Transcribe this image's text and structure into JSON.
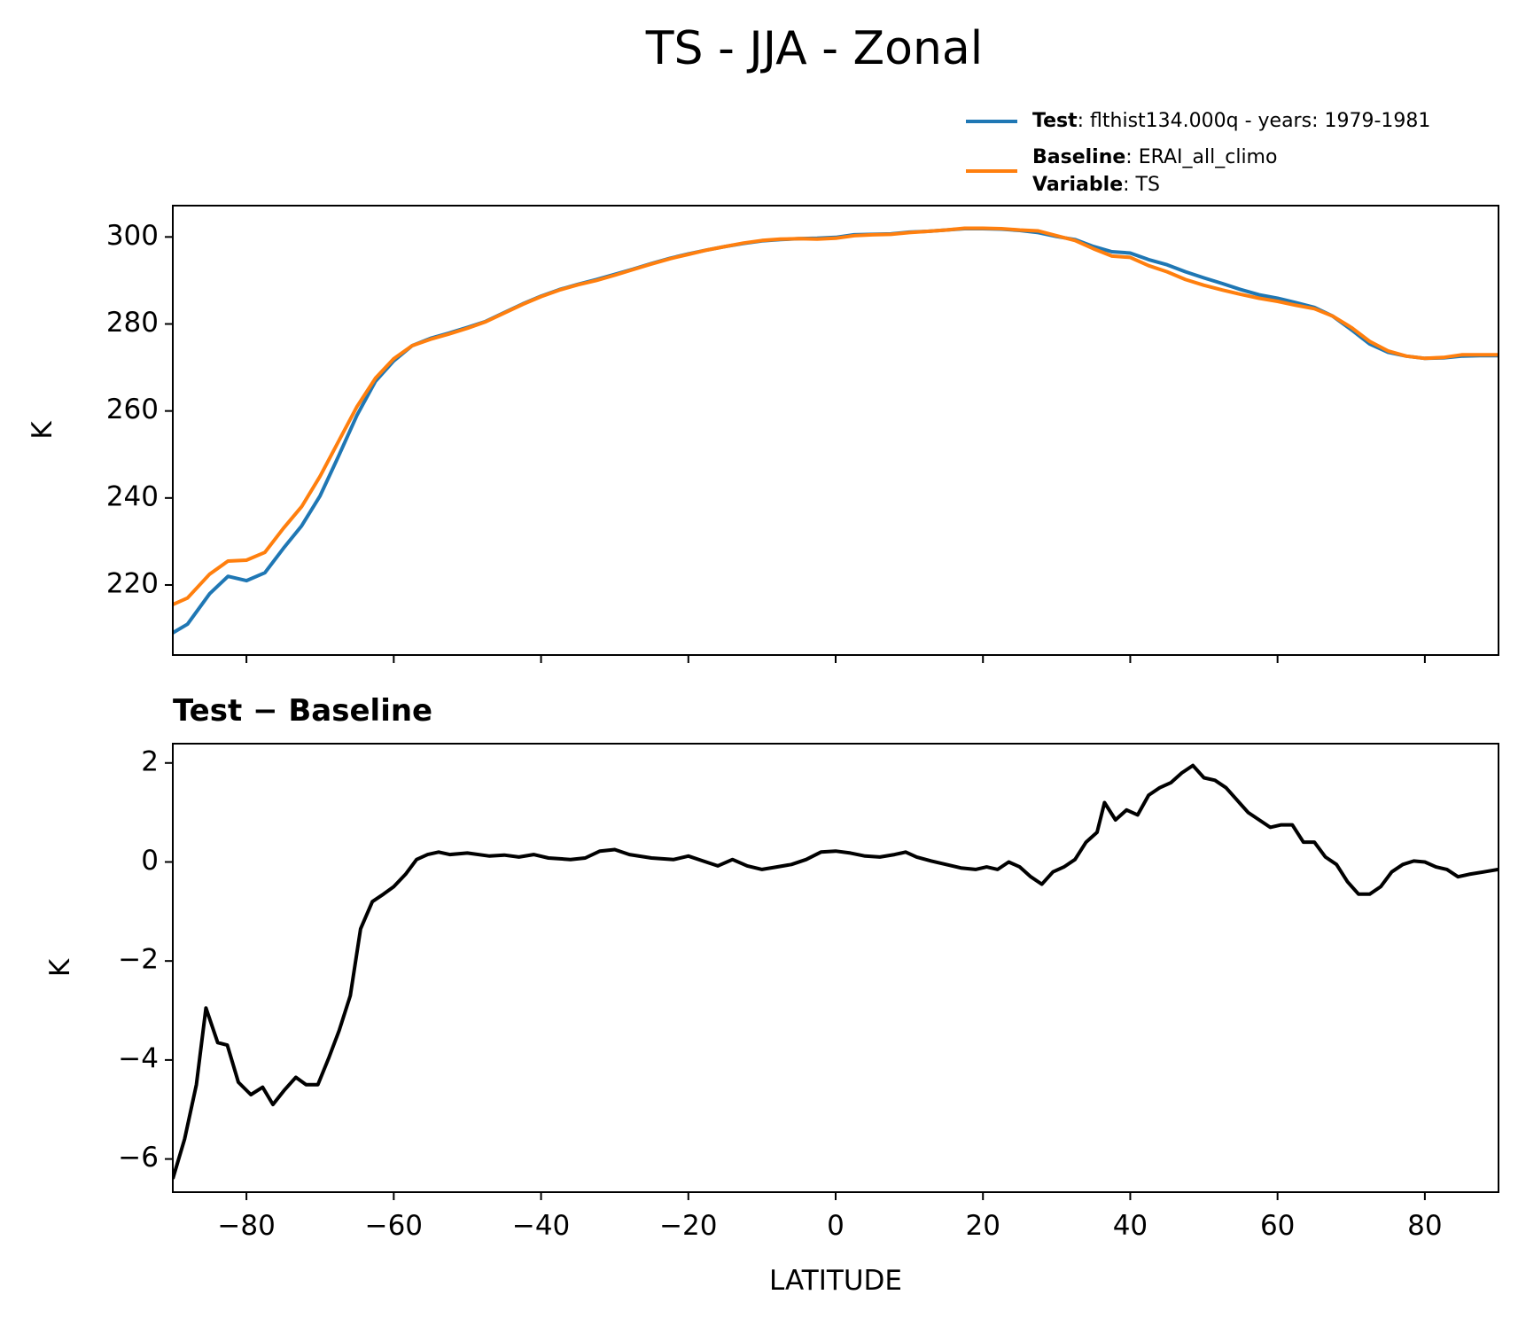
{
  "title": "TS - JJA - Zonal",
  "legend": {
    "variable": {
      "name": "Variable",
      "description": ": TS"
    }
  },
  "chart_data": [
    {
      "type": "line",
      "ylabel": "K",
      "x": [
        -90,
        -88,
        -85,
        -82.5,
        -80,
        -77.5,
        -75,
        -72.5,
        -70,
        -67.5,
        -65,
        -62.5,
        -60,
        -57.5,
        -55,
        -52.5,
        -50,
        -47.5,
        -45,
        -42.5,
        -40,
        -37.5,
        -35,
        -32.5,
        -30,
        -27.5,
        -25,
        -22.5,
        -20,
        -17.5,
        -15,
        -12.5,
        -10,
        -7.5,
        -5,
        -2.5,
        0,
        2.5,
        5,
        7.5,
        10,
        12.5,
        15,
        17.5,
        20,
        22.5,
        25,
        27.5,
        30,
        32.5,
        35,
        37.5,
        40,
        42.5,
        45,
        47.5,
        50,
        52.5,
        55,
        57.5,
        60,
        62.5,
        65,
        67.5,
        70,
        72.5,
        75,
        77.5,
        80,
        82.5,
        85,
        87.5,
        90
      ],
      "series": [
        {
          "name": "Test",
          "description": ": flthist134.000q - years: 1979-1981",
          "color": "#1f77b4",
          "values": [
            209,
            211,
            218,
            222,
            221,
            222.8,
            228.4,
            233.6,
            240.5,
            249.6,
            259,
            266.8,
            271.5,
            275,
            276.7,
            277.9,
            279.2,
            280.6,
            282.6,
            284.6,
            286.4,
            287.9,
            289.1,
            290.2,
            291.4,
            292.6,
            293.9,
            295.1,
            296.1,
            297,
            297.8,
            298.5,
            299.1,
            299.4,
            299.6,
            299.7,
            299.9,
            300.5,
            300.6,
            300.7,
            301.1,
            301.3,
            301.6,
            301.9,
            301.9,
            301.8,
            301.5,
            301,
            300.1,
            299.4,
            297.8,
            296.6,
            296.3,
            294.8,
            293.6,
            292,
            290.6,
            289.3,
            287.9,
            286.7,
            285.9,
            284.9,
            283.8,
            281.8,
            278.7,
            275.4,
            273.5,
            272.6,
            272.1,
            272.2,
            272.6,
            272.7,
            272.7
          ]
        },
        {
          "name": "Baseline",
          "description": ": ERAI_all_climo",
          "color": "#ff7f0e",
          "values": [
            215.5,
            217,
            222.5,
            225.5,
            225.7,
            227.5,
            233,
            238,
            245,
            253,
            261,
            267.5,
            272,
            275,
            276.5,
            277.7,
            279,
            280.5,
            282.5,
            284.5,
            286.3,
            287.8,
            289,
            290,
            291.2,
            292.5,
            293.8,
            295,
            296,
            297,
            297.8,
            298.6,
            299.2,
            299.5,
            299.6,
            299.5,
            299.7,
            300.3,
            300.5,
            300.6,
            301,
            301.3,
            301.6,
            302,
            302,
            301.9,
            301.6,
            301.4,
            300.3,
            299.2,
            297.3,
            295.6,
            295.3,
            293.4,
            292,
            290.2,
            288.9,
            287.8,
            286.8,
            285.9,
            285.2,
            284.3,
            283.5,
            281.8,
            279.2,
            276,
            273.8,
            272.6,
            272.1,
            272.3,
            272.9,
            272.9,
            272.9
          ]
        }
      ],
      "xlim": [
        -90,
        90
      ],
      "ylim": [
        203.9,
        307.2
      ],
      "xticks": [
        -80,
        -60,
        -40,
        -20,
        0,
        20,
        40,
        60,
        80
      ],
      "yticks": [
        220,
        240,
        260,
        280,
        300
      ]
    },
    {
      "type": "line",
      "title": "Test − Baseline",
      "xlabel": "LATITUDE",
      "ylabel": "K",
      "x": [
        -90,
        -88.4,
        -86.8,
        -85.5,
        -83.9,
        -82.6,
        -81.1,
        -79.4,
        -77.8,
        -76.4,
        -74.8,
        -73.3,
        -71.9,
        -70.3,
        -68.8,
        -67.4,
        -65.9,
        -64.5,
        -62.9,
        -61.4,
        -60,
        -58.4,
        -56.9,
        -55.4,
        -53.9,
        -52.4,
        -50,
        -47,
        -45,
        -43,
        -41,
        -39,
        -36,
        -34,
        -32,
        -30,
        -28,
        -25,
        -22,
        -20,
        -18,
        -16,
        -14,
        -12,
        -10,
        -8,
        -6,
        -4,
        -2,
        0,
        2,
        4,
        6,
        8,
        9.5,
        11,
        13,
        15,
        17,
        19,
        20.5,
        22,
        23.5,
        25,
        26.5,
        28,
        29.5,
        31,
        32.5,
        34,
        35.5,
        36.5,
        38,
        39.5,
        41,
        42.5,
        44,
        45.5,
        47,
        48.5,
        50,
        51.5,
        53,
        54.5,
        56,
        57.5,
        59,
        60.5,
        62,
        63.5,
        65,
        66.5,
        68,
        69.5,
        71,
        72.5,
        74,
        75.5,
        77,
        78.5,
        80,
        81.5,
        83,
        84.5,
        86,
        88,
        90
      ],
      "series": [
        {
          "color": "#000000",
          "values": [
            -6.4,
            -5.6,
            -4.5,
            -2.95,
            -3.65,
            -3.7,
            -4.45,
            -4.7,
            -4.55,
            -4.9,
            -4.6,
            -4.35,
            -4.5,
            -4.5,
            -3.95,
            -3.4,
            -2.7,
            -1.35,
            -0.8,
            -0.65,
            -0.5,
            -0.25,
            0.05,
            0.15,
            0.2,
            0.15,
            0.18,
            0.12,
            0.14,
            0.1,
            0.15,
            0.08,
            0.05,
            0.08,
            0.22,
            0.25,
            0.15,
            0.08,
            0.05,
            0.12,
            0.02,
            -0.08,
            0.05,
            -0.08,
            -0.15,
            -0.1,
            -0.05,
            0.05,
            0.2,
            0.22,
            0.18,
            0.12,
            0.1,
            0.15,
            0.2,
            0.1,
            0.02,
            -0.05,
            -0.12,
            -0.15,
            -0.1,
            -0.15,
            0,
            -0.1,
            -0.3,
            -0.45,
            -0.2,
            -0.1,
            0.05,
            0.4,
            0.6,
            1.2,
            0.85,
            1.05,
            0.95,
            1.35,
            1.5,
            1.6,
            1.8,
            1.95,
            1.7,
            1.65,
            1.5,
            1.25,
            1,
            0.85,
            0.7,
            0.75,
            0.75,
            0.4,
            0.4,
            0.1,
            -0.05,
            -0.4,
            -0.65,
            -0.65,
            -0.5,
            -0.2,
            -0.05,
            0.02,
            0,
            -0.1,
            -0.15,
            -0.3,
            -0.25,
            -0.2,
            -0.15
          ]
        }
      ],
      "xlim": [
        -90,
        90
      ],
      "ylim": [
        -6.67,
        2.39
      ],
      "xticks": [
        {
          "value": -80,
          "label": "−80"
        },
        {
          "value": -60,
          "label": "−60"
        },
        {
          "value": -40,
          "label": "−40"
        },
        {
          "value": -20,
          "label": "−20"
        },
        0,
        20,
        40,
        60,
        80
      ],
      "yticks": [
        {
          "value": -6,
          "label": "−6"
        },
        {
          "value": -4,
          "label": "−4"
        },
        {
          "value": -2,
          "label": "−2"
        },
        0,
        2
      ]
    }
  ]
}
